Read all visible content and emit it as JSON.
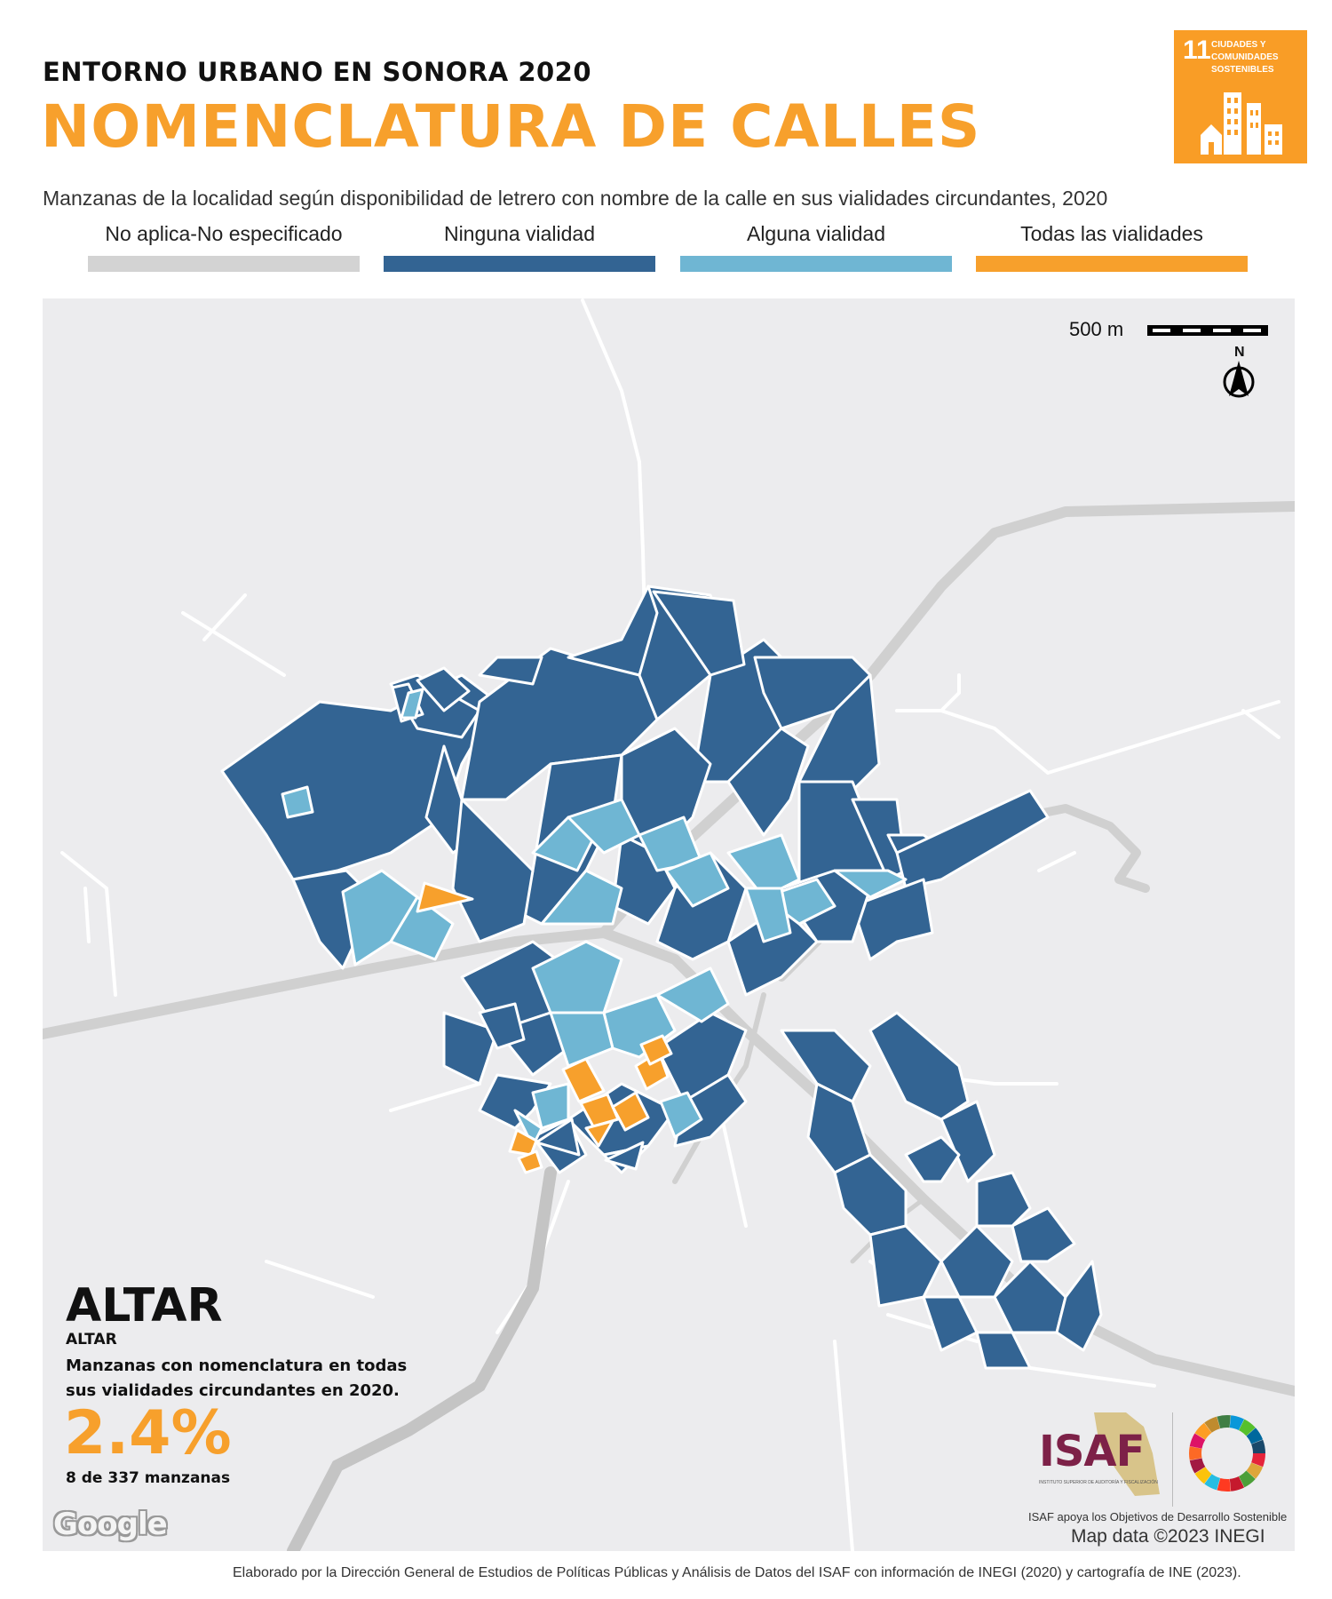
{
  "header": {
    "supertitle": "ENTORNO URBANO EN SONORA 2020",
    "title": "NOMENCLATURA DE CALLES",
    "subtitle": "Manzanas de la localidad según disponibilidad de letrero con nombre de la calle en sus vialidades circundantes, 2020"
  },
  "sdg_badge": {
    "number": "11",
    "text": "CIUDADES Y COMUNIDADES SOSTENIBLES",
    "color": "#f99d26"
  },
  "legend": [
    {
      "label": "No aplica-No especificado",
      "color": "#d3d3d3"
    },
    {
      "label": "Ninguna vialidad",
      "color": "#336493"
    },
    {
      "label": "Alguna vialidad",
      "color": "#6fb6d3"
    },
    {
      "label": "Todas las vialidades",
      "color": "#f7a02c"
    }
  ],
  "map": {
    "scale_label": "500 m",
    "north_label": "N",
    "attribution": "Map data ©2023 INEGI",
    "google_logo": "Google",
    "colors": {
      "background": "#ececee",
      "road": "#d0d0d0",
      "minor_road": "#ffffff",
      "river": "#c4c4c4"
    }
  },
  "summary": {
    "place": "ALTAR",
    "place_sub": "ALTAR",
    "description": "Manzanas con nomenclatura en todas sus vialidades circundantes en 2020.",
    "percentage": "2.4%",
    "count": "8 de 337 manzanas"
  },
  "isaf": {
    "logo_text": "ISAF",
    "tiny_text": "INSTITUTO SUPERIOR DE AUDITORÍA Y FISCALIZACIÓN",
    "caption": "ISAF apoya los Objetivos de Desarrollo Sostenible"
  },
  "footer": {
    "credits": "Elaborado por la Dirección General de Estudios de Políticas Públicas y Análisis de Datos del ISAF con información de INEGI (2020) y cartografía de INE (2023)."
  }
}
